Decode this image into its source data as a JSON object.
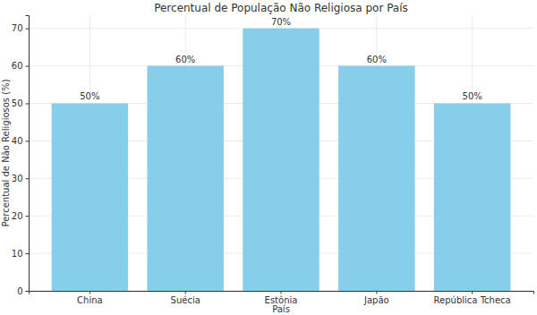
{
  "chart_data": {
    "type": "bar",
    "title": "Percentual de População Não Religiosa por País",
    "x_label": "País",
    "y_label": "Percentual de Não Religiosos (%)",
    "categories": [
      "China",
      "Suécia",
      "Estônia",
      "Japão",
      "República Tcheca"
    ],
    "values": [
      50,
      60,
      70,
      60,
      50
    ],
    "value_labels": [
      "50%",
      "60%",
      "70%",
      "60%",
      "50%"
    ],
    "data_labels": true,
    "color": "#87ceeb",
    "ylim": [
      0,
      73.5
    ],
    "yticks": [
      0,
      10,
      20,
      30,
      40,
      50,
      60,
      70
    ],
    "grid": true
  }
}
